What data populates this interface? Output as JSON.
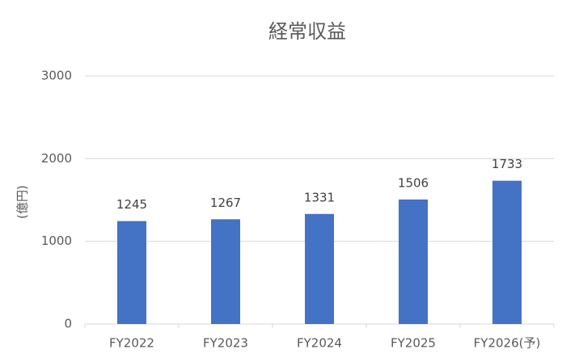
{
  "chart_data": {
    "type": "bar",
    "title": "経常収益",
    "y_label": "(億円)",
    "categories": [
      "FY2022",
      "FY2023",
      "FY2024",
      "FY2025",
      "FY2026(予)"
    ],
    "values": [
      1245,
      1267,
      1331,
      1506,
      1733
    ],
    "color": "#4472c4",
    "ylim": [
      0,
      3000
    ],
    "yticks": [
      0,
      1000,
      2000,
      3000
    ],
    "grid": true,
    "data_labels": true
  }
}
